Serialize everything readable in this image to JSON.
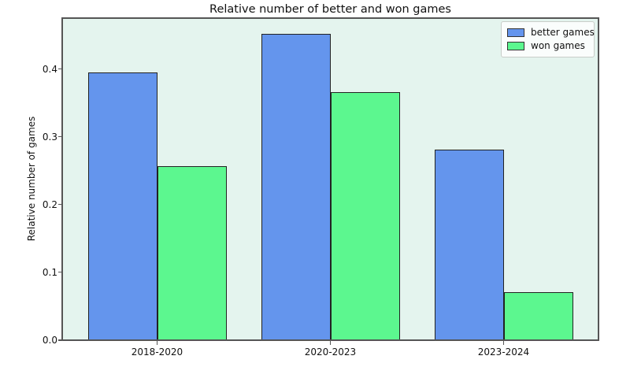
{
  "chart_data": {
    "type": "bar",
    "title": "Relative number of better and won games",
    "xlabel": "",
    "ylabel": "Relative number of games",
    "categories": [
      "2018-2020",
      "2020-2023",
      "2023-2024"
    ],
    "series": [
      {
        "name": "better games",
        "color": "#6495ed",
        "values": [
          0.395,
          0.452,
          0.281
        ]
      },
      {
        "name": "won games",
        "color": "#5cf78f",
        "values": [
          0.257,
          0.366,
          0.071
        ]
      }
    ],
    "ylim": [
      0,
      0.475
    ],
    "yticks": [
      0.0,
      0.1,
      0.2,
      0.3,
      0.4
    ],
    "ytick_format_decimals": 1,
    "legend_position": "upper right",
    "grid": false,
    "colors": {
      "plot_background": "#e4f4ee",
      "figure_background": "#ffffff",
      "axis_frame": "#555555",
      "bar_edge": "#222222",
      "text": "#111111"
    }
  }
}
